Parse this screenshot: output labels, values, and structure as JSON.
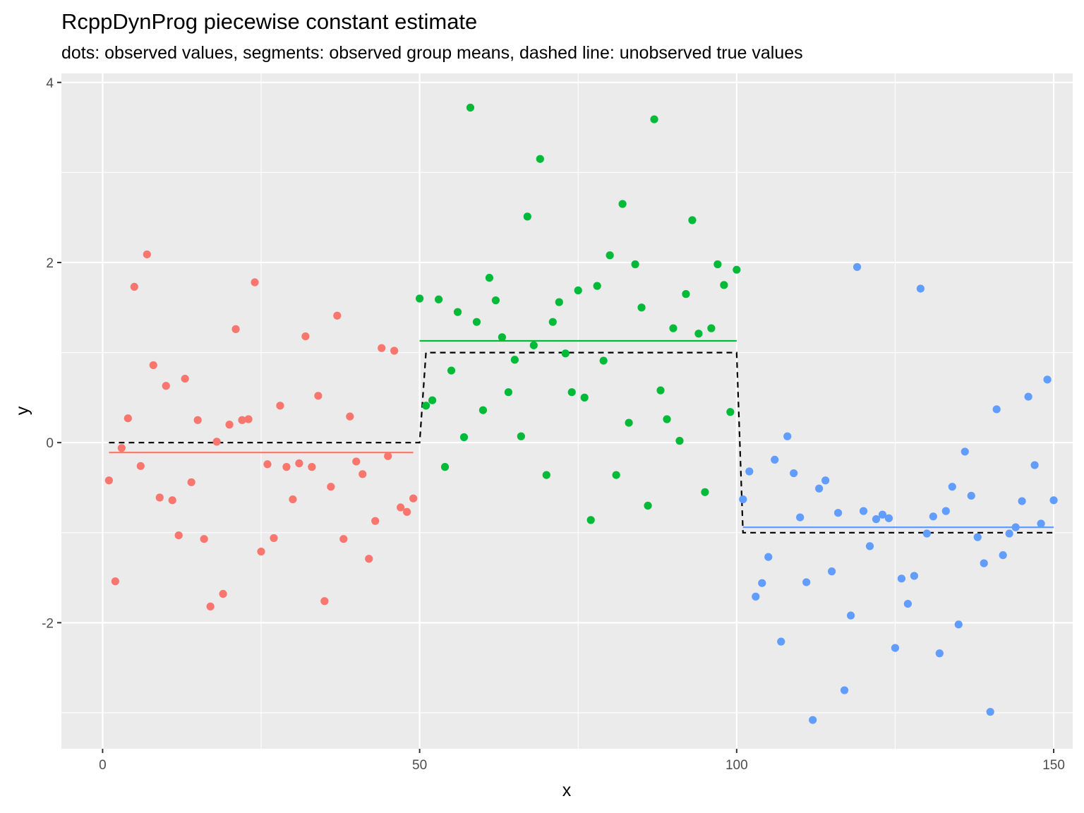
{
  "chart_data": {
    "type": "scatter",
    "title": "RcppDynProg piecewise constant estimate",
    "subtitle": "dots: observed values, segments: observed group means, dashed line: unobserved true values",
    "xlabel": "x",
    "ylabel": "y",
    "xlim": [
      -6.5,
      153
    ],
    "ylim": [
      -3.4,
      4.1
    ],
    "x_ticks": [
      0,
      50,
      100,
      150
    ],
    "x_tick_labels": [
      "0",
      "50",
      "100",
      "150"
    ],
    "y_ticks": [
      -2,
      0,
      2,
      4
    ],
    "y_tick_labels": [
      "-2",
      "0",
      "2",
      "4"
    ],
    "grid": true,
    "legend": "none",
    "series": [
      {
        "color": "#F8766D",
        "x": [
          1,
          2,
          3,
          4,
          5,
          6,
          7,
          8,
          9,
          10,
          11,
          12,
          13,
          14,
          15,
          16,
          17,
          18,
          19,
          20,
          21,
          22,
          23,
          24,
          25,
          26,
          27,
          28,
          29,
          30,
          31,
          32,
          33,
          34,
          35,
          36,
          37,
          38,
          39,
          40,
          41,
          42,
          43,
          44,
          45,
          46,
          47,
          48,
          49
        ],
        "y": [
          -0.42,
          -1.54,
          -0.06,
          0.27,
          1.73,
          -0.26,
          2.09,
          0.86,
          -0.61,
          0.63,
          -0.64,
          -1.03,
          0.71,
          -0.44,
          0.25,
          -1.07,
          -1.82,
          0.01,
          -1.68,
          0.2,
          1.26,
          0.25,
          0.26,
          1.78,
          -1.21,
          -0.24,
          -1.06,
          0.41,
          -0.27,
          -0.63,
          -0.23,
          1.18,
          -0.27,
          0.52,
          -1.76,
          -0.49,
          1.41,
          -1.07,
          0.29,
          -0.21,
          -0.35,
          -1.29,
          -0.87,
          1.05,
          -0.15,
          1.02,
          -0.72,
          -0.77,
          -0.62
        ]
      },
      {
        "color": "#00BA38",
        "x": [
          50,
          51,
          52,
          53,
          54,
          55,
          56,
          57,
          58,
          59,
          60,
          61,
          62,
          63,
          64,
          65,
          66,
          67,
          68,
          69,
          70,
          71,
          72,
          73,
          74,
          75,
          76,
          77,
          78,
          79,
          80,
          81,
          82,
          83,
          84,
          85,
          86,
          87,
          88,
          89,
          90,
          91,
          92,
          93,
          94,
          95,
          96,
          97,
          98,
          99,
          100
        ],
        "y": [
          1.6,
          0.41,
          0.47,
          1.59,
          -0.27,
          0.8,
          1.45,
          0.06,
          3.72,
          1.34,
          0.36,
          1.83,
          1.58,
          1.17,
          0.56,
          0.92,
          0.07,
          2.51,
          1.08,
          3.15,
          -0.36,
          1.34,
          1.56,
          0.99,
          0.56,
          1.69,
          0.5,
          -0.86,
          1.74,
          0.91,
          2.08,
          -0.36,
          2.65,
          0.22,
          1.98,
          1.5,
          -0.7,
          3.59,
          0.58,
          0.26,
          1.27,
          0.02,
          1.65,
          2.47,
          1.21,
          -0.55,
          1.27,
          1.98,
          1.75,
          0.34,
          1.92
        ]
      },
      {
        "color": "#619CFF",
        "x": [
          101,
          102,
          103,
          104,
          105,
          106,
          107,
          108,
          109,
          110,
          111,
          112,
          113,
          114,
          115,
          116,
          117,
          118,
          119,
          120,
          121,
          122,
          123,
          124,
          125,
          126,
          127,
          128,
          129,
          130,
          131,
          132,
          133,
          134,
          135,
          136,
          137,
          138,
          139,
          140,
          141,
          142,
          143,
          144,
          145,
          146,
          147,
          148,
          149,
          150
        ],
        "y": [
          -0.63,
          -0.32,
          -1.71,
          -1.56,
          -1.27,
          -0.19,
          -2.21,
          0.07,
          -0.34,
          -0.83,
          -1.55,
          -3.08,
          -0.51,
          -0.42,
          -1.43,
          -0.78,
          -2.75,
          -1.92,
          1.95,
          -0.76,
          -1.15,
          -0.85,
          -0.8,
          -0.84,
          -2.28,
          -1.51,
          -1.79,
          -1.48,
          1.71,
          -1.01,
          -0.82,
          -2.34,
          -0.76,
          -0.49,
          -2.02,
          -0.1,
          -0.59,
          -1.05,
          -1.34,
          -2.99,
          0.37,
          -1.25,
          -1.01,
          -0.94,
          -0.65,
          0.51,
          -0.25,
          -0.9,
          0.7,
          -0.64
        ]
      }
    ],
    "group_means": [
      {
        "color": "#F8766D",
        "x": [
          1,
          49
        ],
        "y": -0.11
      },
      {
        "color": "#00BA38",
        "x": [
          50,
          100
        ],
        "y": 1.13
      },
      {
        "color": "#619CFF",
        "x": [
          101,
          150
        ],
        "y": -0.94
      }
    ],
    "true_values": {
      "color": "#000000",
      "style": "dashed",
      "x": [
        1,
        50,
        51,
        100,
        101,
        150
      ],
      "y": [
        0,
        0,
        1,
        1,
        -1,
        -1
      ]
    }
  }
}
